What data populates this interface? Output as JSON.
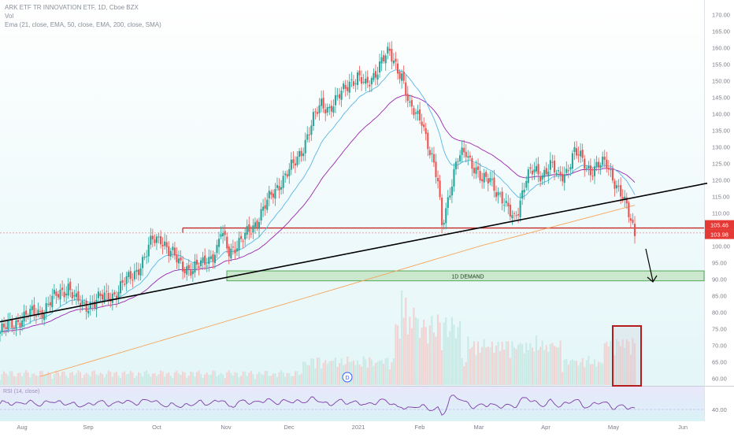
{
  "header": {
    "title": "ARK ETF TR INNOVATION ETF, 1D, Cboe BZX",
    "vol_label": "Vol",
    "ma_label": "Ema (21, close, EMA, 50, close, EMA, 200, close, SMA)"
  },
  "indicator": {
    "rsi_label": "RSI (14, close)"
  },
  "colors": {
    "background": "#ffffff",
    "up_candle": "#26a69a",
    "down_candle": "#ef5350",
    "ema21": "#5bb6e6",
    "ema50": "#9c27b0",
    "sma200": "#f5a35a",
    "support_line": "#000000",
    "zone_line": "#c62828",
    "demand_fill": "#c8e6c9",
    "demand_border": "#43a047",
    "rsi_line": "#7e3ca8",
    "volume_box": "#b71c1c",
    "price_badge": "#e53935"
  },
  "annotations": {
    "demand_label": "1D DEMAND",
    "price_tag_1": "105.46",
    "price_tag_2": "103.98",
    "event_marker": "D"
  },
  "chart_data": {
    "type": "candlestick",
    "title": "ARK ETF TR INNOVATION ETF, 1D, Cboe BZX",
    "price_axis_ticks": [
      170,
      165,
      160,
      155,
      150,
      145,
      140,
      135,
      130,
      125,
      120,
      115,
      110,
      105,
      100,
      95,
      90,
      85,
      80,
      75,
      70,
      65,
      60
    ],
    "x_axis_labels": [
      "Aug",
      "Sep",
      "Oct",
      "Nov",
      "Dec",
      "2021",
      "Feb",
      "Mar",
      "Apr",
      "May",
      "Jun"
    ],
    "ylim": [
      58,
      172
    ],
    "horizontal_level": 105.46,
    "last_price": 103.98,
    "demand_zone": [
      89.5,
      92.5
    ],
    "support_trendline": {
      "from": [
        "Jul",
        76
      ],
      "to": [
        "Jun",
        119
      ]
    },
    "rsi_level": 40,
    "rsi_ticks": [
      "40.00"
    ],
    "price_series_approx": [
      [
        "Aug",
        79
      ],
      [
        "Aug",
        83
      ],
      [
        "Sep",
        90
      ],
      [
        "Sep",
        84
      ],
      [
        "Oct",
        91
      ],
      [
        "Oct",
        104
      ],
      [
        "Nov",
        92
      ],
      [
        "Nov",
        99
      ],
      [
        "Dec",
        118
      ],
      [
        "Dec",
        125
      ],
      [
        "2021",
        140
      ],
      [
        "2021",
        144
      ],
      [
        "Feb",
        157
      ],
      [
        "Feb",
        150
      ],
      [
        "Mar",
        120
      ],
      [
        "Mar",
        130
      ],
      [
        "Apr",
        110
      ],
      [
        "Apr",
        125
      ],
      [
        "May",
        120
      ],
      [
        "May",
        104
      ]
    ]
  }
}
